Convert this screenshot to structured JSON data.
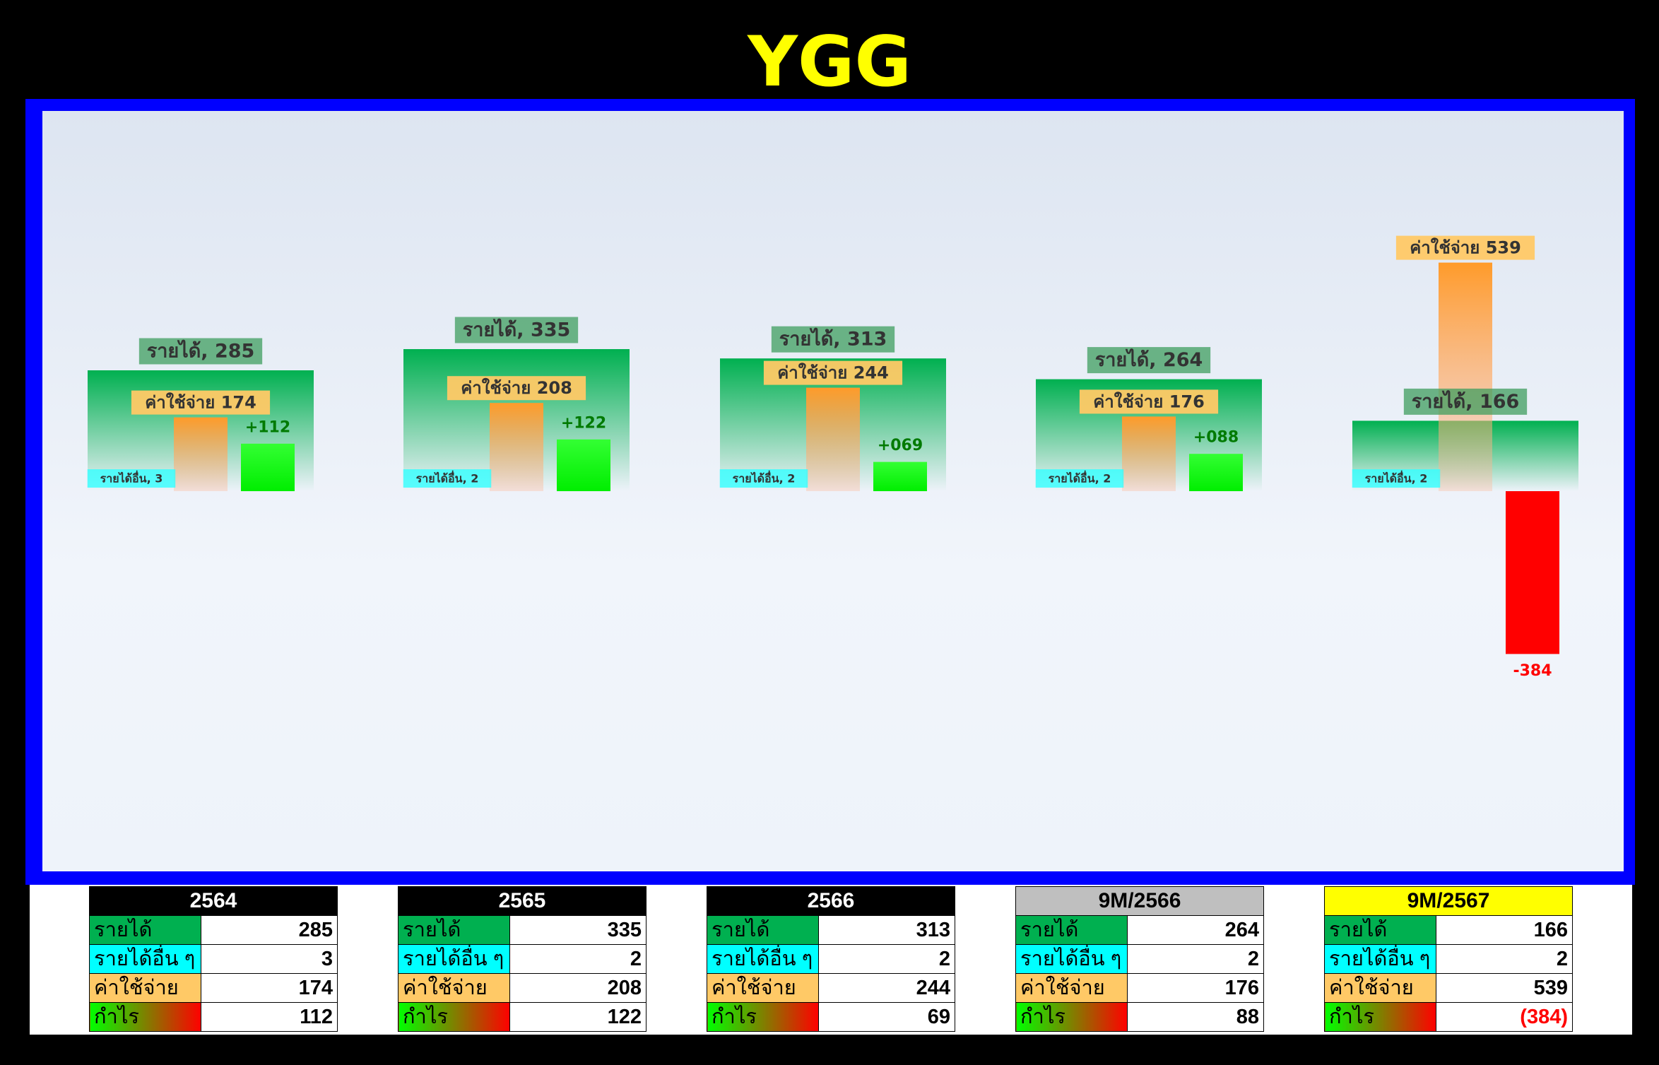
{
  "title": "YGG",
  "colors": {
    "background": "#000000",
    "title": "#ffff00",
    "frame": "#0000ff",
    "revenue": "#00b050",
    "other_income": "#00ffff",
    "expense": "#ffc966",
    "profit_positive": "#00ff00",
    "profit_negative": "#ff0000",
    "header_2564": "#000000",
    "header_9m2566": "#bfbfbf",
    "header_9m2567": "#ffff00"
  },
  "chart_data": {
    "type": "bar",
    "categories": [
      "2564",
      "2565",
      "2566",
      "9M/2566",
      "9M/2567"
    ],
    "series": [
      {
        "name": "รายได้",
        "values": [
          285,
          335,
          313,
          264,
          166
        ]
      },
      {
        "name": "รายได้อื่น",
        "values": [
          3,
          2,
          2,
          2,
          2
        ]
      },
      {
        "name": "ค่าใช้จ่าย",
        "values": [
          174,
          208,
          244,
          176,
          539
        ]
      },
      {
        "name": "กำไร",
        "values": [
          112,
          122,
          69,
          88,
          -384
        ]
      }
    ],
    "labels": {
      "revenue": [
        "รายได้, 285",
        "รายได้, 335",
        "รายได้, 313",
        "รายได้, 264",
        "รายได้, 166"
      ],
      "other_income": [
        "รายได้อื่น, 3",
        "รายได้อื่น, 2",
        "รายได้อื่น, 2",
        "รายได้อื่น, 2",
        "รายได้อื่น, 2"
      ],
      "expense": [
        "ค่าใช้จ่าย 174",
        "ค่าใช้จ่าย 208",
        "ค่าใช้จ่าย 244",
        "ค่าใช้จ่าย 176",
        "ค่าใช้จ่าย 539"
      ],
      "profit": [
        "+112",
        "+122",
        "+069",
        "+088",
        "-384"
      ]
    },
    "ylim": [
      -540,
      540
    ],
    "grid": false
  },
  "tables": [
    {
      "header": "2564",
      "header_bg": "#000000",
      "header_fg": "#ffffff",
      "rows": [
        {
          "label": "รายได้",
          "value": "285",
          "kind": "rev"
        },
        {
          "label": "รายได้อื่น ๆ",
          "value": "3",
          "kind": "oth"
        },
        {
          "label": "ค่าใช้จ่าย",
          "value": "174",
          "kind": "exp"
        },
        {
          "label": "กำไร",
          "value": "112",
          "kind": "pro"
        }
      ]
    },
    {
      "header": "2565",
      "header_bg": "#000000",
      "header_fg": "#ffffff",
      "rows": [
        {
          "label": "รายได้",
          "value": "335",
          "kind": "rev"
        },
        {
          "label": "รายได้อื่น ๆ",
          "value": "2",
          "kind": "oth"
        },
        {
          "label": "ค่าใช้จ่าย",
          "value": "208",
          "kind": "exp"
        },
        {
          "label": "กำไร",
          "value": "122",
          "kind": "pro"
        }
      ]
    },
    {
      "header": "2566",
      "header_bg": "#000000",
      "header_fg": "#ffffff",
      "rows": [
        {
          "label": "รายได้",
          "value": "313",
          "kind": "rev"
        },
        {
          "label": "รายได้อื่น ๆ",
          "value": "2",
          "kind": "oth"
        },
        {
          "label": "ค่าใช้จ่าย",
          "value": "244",
          "kind": "exp"
        },
        {
          "label": "กำไร",
          "value": "69",
          "kind": "pro"
        }
      ]
    },
    {
      "header": "9M/2566",
      "header_bg": "#bfbfbf",
      "header_fg": "#000000",
      "rows": [
        {
          "label": "รายได้",
          "value": "264",
          "kind": "rev"
        },
        {
          "label": "รายได้อื่น ๆ",
          "value": "2",
          "kind": "oth"
        },
        {
          "label": "ค่าใช้จ่าย",
          "value": "176",
          "kind": "exp"
        },
        {
          "label": "กำไร",
          "value": "88",
          "kind": "pro"
        }
      ]
    },
    {
      "header": "9M/2567",
      "header_bg": "#ffff00",
      "header_fg": "#000000",
      "rows": [
        {
          "label": "รายได้",
          "value": "166",
          "kind": "rev"
        },
        {
          "label": "รายได้อื่น ๆ",
          "value": "2",
          "kind": "oth"
        },
        {
          "label": "ค่าใช้จ่าย",
          "value": "539",
          "kind": "exp"
        },
        {
          "label": "กำไร",
          "value": "(384)",
          "kind": "pro",
          "negative": true
        }
      ]
    }
  ]
}
